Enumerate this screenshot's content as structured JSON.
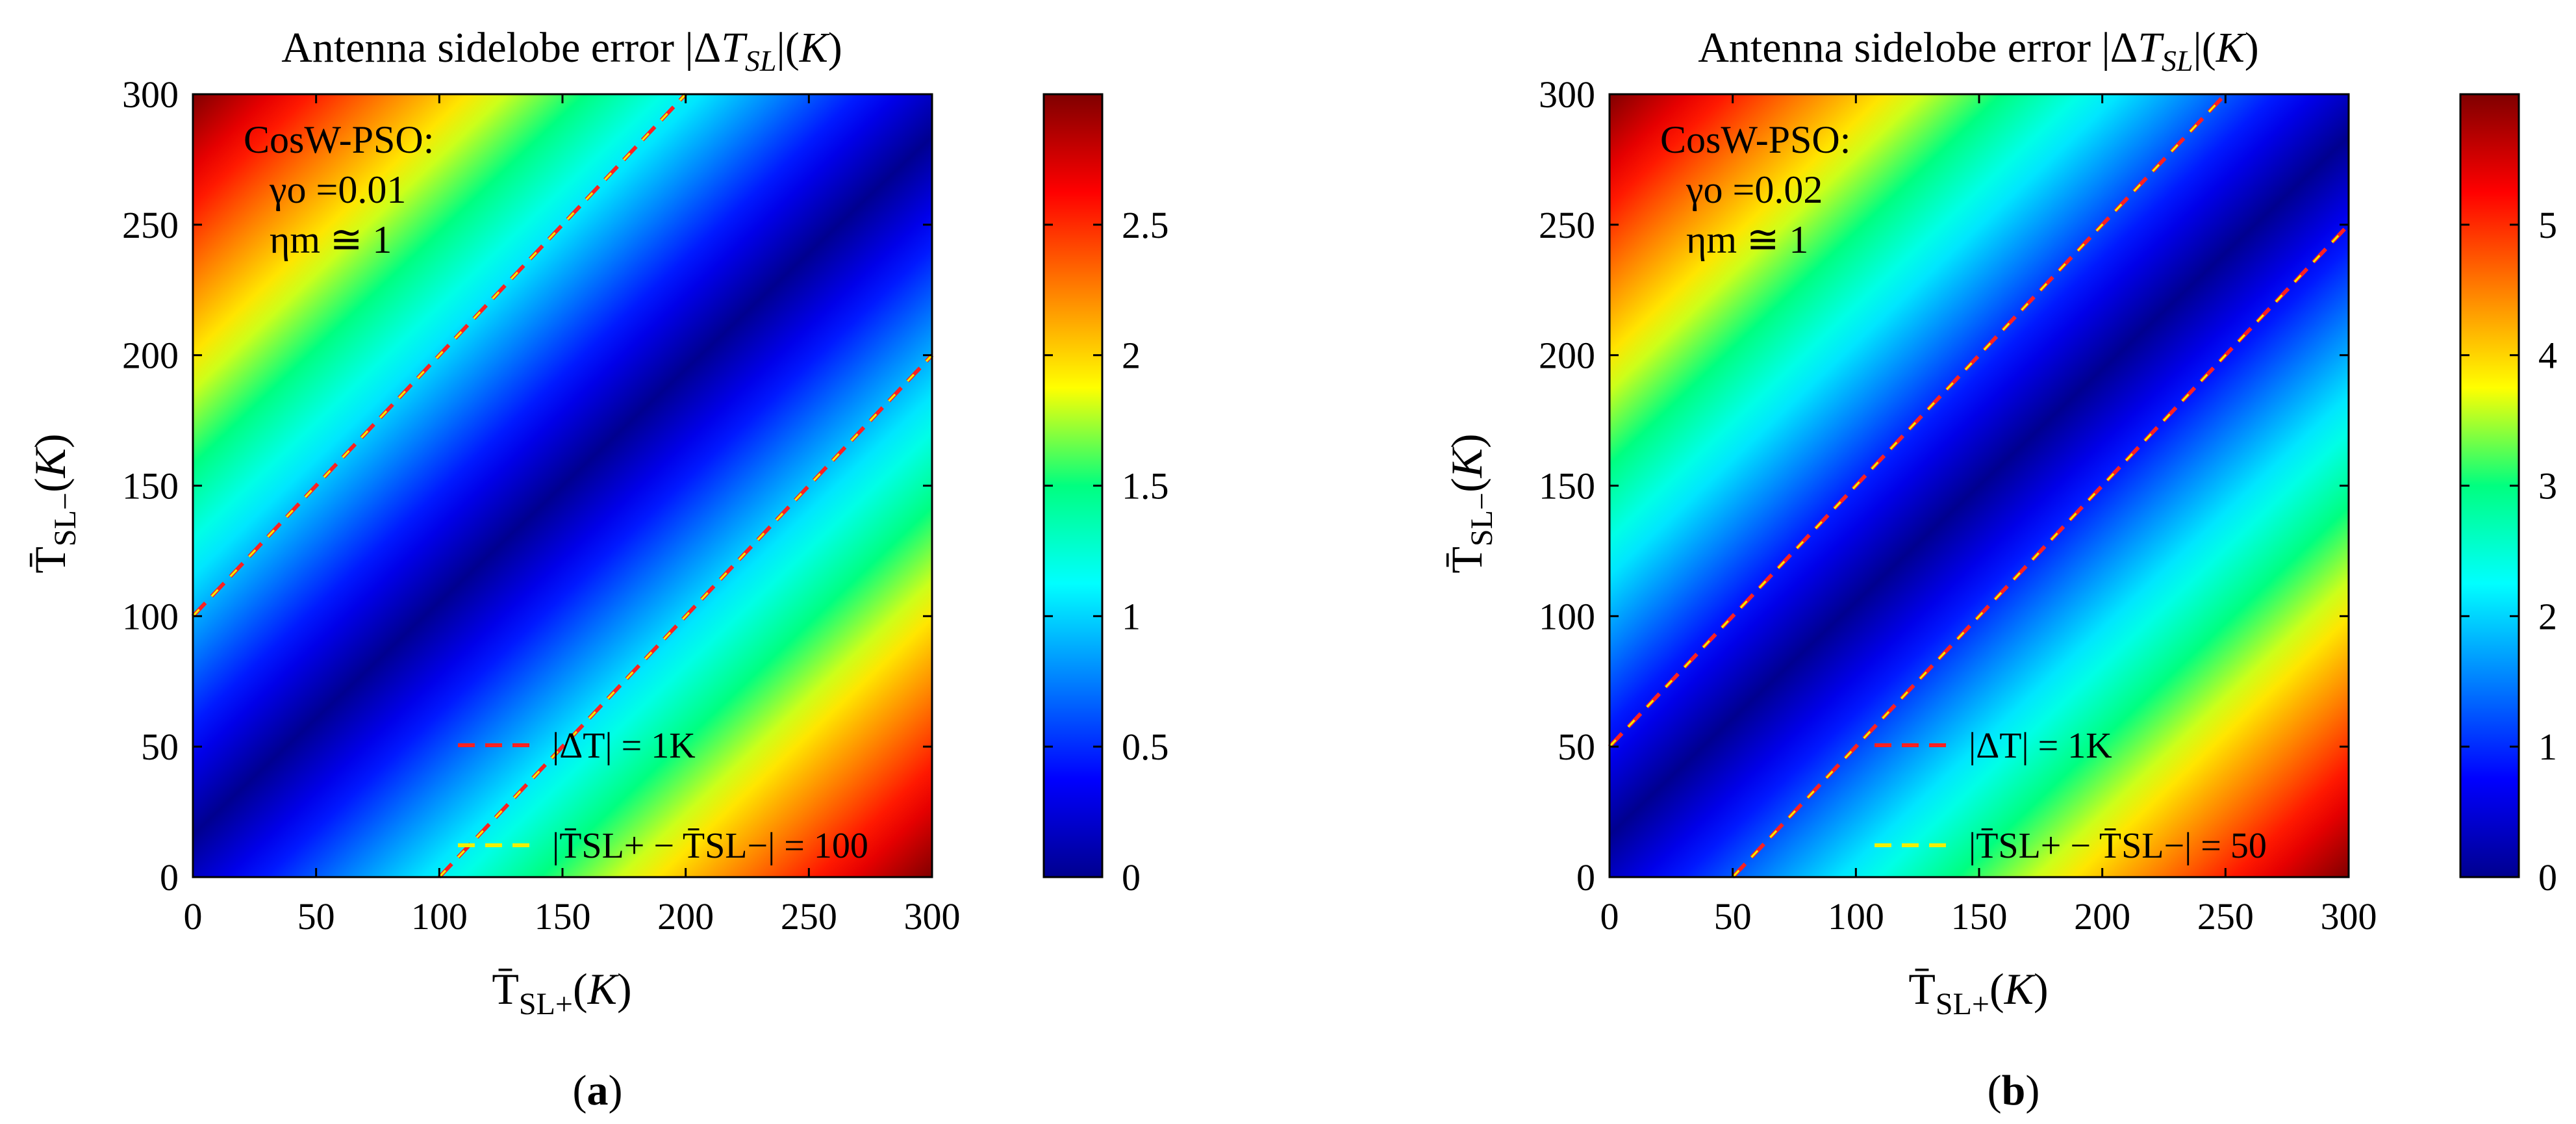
{
  "chart_data": [
    {
      "type": "heatmap",
      "panel": "a",
      "caption_letter": "a",
      "title": "Antenna sidelobe error |ΔT_SL|(K)",
      "xlabel": "T̄_SL+(K)",
      "ylabel": "T̄_SL−(K)",
      "xlim": [
        0,
        300
      ],
      "ylim": [
        0,
        300
      ],
      "xticks": [
        0,
        50,
        100,
        150,
        200,
        250,
        300
      ],
      "yticks": [
        0,
        50,
        100,
        150,
        200,
        250,
        300
      ],
      "function": "0.01 * |T_SL+ − T_SL−|",
      "gamma_o": 0.01,
      "color_range": [
        0,
        3
      ],
      "colorbar_ticks": [
        0,
        0.5,
        1,
        1.5,
        2,
        2.5
      ],
      "colorbar_tick_labels": [
        "0",
        "0.5",
        "1",
        "1.5",
        "2",
        "2.5"
      ],
      "annotation": [
        "CosW-PSO:",
        "γo =0.01",
        "ηm ≅ 1"
      ],
      "contour_diff": 100,
      "legend": [
        {
          "label": "|ΔT| = 1K",
          "color": "#ff2020",
          "style": "dashed"
        },
        {
          "label": "|T̄SL+ − T̄SL−| = 100",
          "color": "#f0f000",
          "style": "dashed"
        }
      ]
    },
    {
      "type": "heatmap",
      "panel": "b",
      "caption_letter": "b",
      "title": "Antenna sidelobe error |ΔT_SL|(K)",
      "xlabel": "T̄_SL+(K)",
      "ylabel": "T̄_SL−(K)",
      "xlim": [
        0,
        300
      ],
      "ylim": [
        0,
        300
      ],
      "xticks": [
        0,
        50,
        100,
        150,
        200,
        250,
        300
      ],
      "yticks": [
        0,
        50,
        100,
        150,
        200,
        250,
        300
      ],
      "function": "0.02 * |T_SL+ − T_SL−|",
      "gamma_o": 0.02,
      "color_range": [
        0,
        6
      ],
      "colorbar_ticks": [
        0,
        1,
        2,
        3,
        4,
        5
      ],
      "colorbar_tick_labels": [
        "0",
        "1",
        "2",
        "3",
        "4",
        "5"
      ],
      "annotation": [
        "CosW-PSO:",
        "γo =0.02",
        "ηm ≅ 1"
      ],
      "contour_diff": 50,
      "legend": [
        {
          "label": "|ΔT| = 1K",
          "color": "#ff2020",
          "style": "dashed"
        },
        {
          "label": "|T̄SL+ − T̄SL−| = 50",
          "color": "#f0f000",
          "style": "dashed"
        }
      ]
    }
  ]
}
